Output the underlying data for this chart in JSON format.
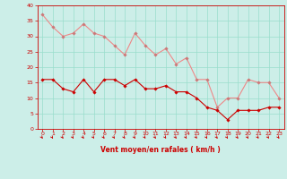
{
  "hours": [
    0,
    1,
    2,
    3,
    4,
    5,
    6,
    7,
    8,
    9,
    10,
    11,
    12,
    13,
    14,
    15,
    16,
    17,
    18,
    19,
    20,
    21,
    22,
    23
  ],
  "vent_moyen": [
    16,
    16,
    13,
    12,
    16,
    12,
    16,
    16,
    14,
    16,
    13,
    13,
    14,
    12,
    12,
    10,
    7,
    6,
    3,
    6,
    6,
    6,
    7,
    7
  ],
  "en_rafales": [
    37,
    33,
    30,
    31,
    34,
    31,
    30,
    27,
    24,
    31,
    27,
    24,
    26,
    21,
    23,
    16,
    16,
    7,
    10,
    10,
    16,
    15,
    15,
    10
  ],
  "bg_color": "#cceee8",
  "grid_color": "#99ddcc",
  "line_moyen_color": "#cc0000",
  "line_rafales_color": "#ee8888",
  "marker_color_moyen": "#cc0000",
  "marker_color_rafales": "#cc7777",
  "xlabel": "Vent moyen/en rafales ( km/h )",
  "xlabel_color": "#cc0000",
  "tick_color": "#cc0000",
  "spine_color": "#cc0000",
  "ylim": [
    0,
    40
  ],
  "yticks": [
    0,
    5,
    10,
    15,
    20,
    25,
    30,
    35,
    40
  ]
}
